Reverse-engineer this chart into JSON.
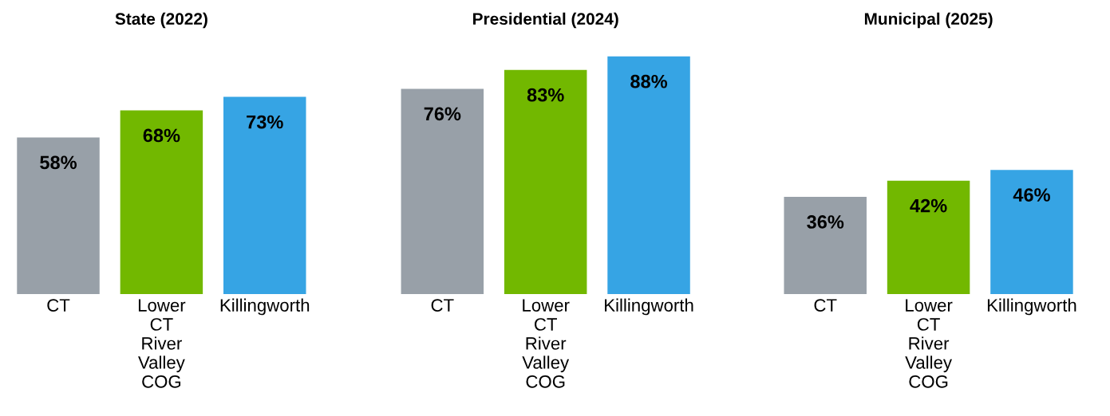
{
  "chart_data": [
    {
      "type": "bar",
      "title": "State (2022)",
      "categories": [
        "CT",
        "Lower CT River Valley COG",
        "Killingworth"
      ],
      "values": [
        58,
        68,
        73
      ],
      "colors": [
        "#98a0a8",
        "#72b800",
        "#36a4e4"
      ],
      "value_labels": [
        "58%",
        "68%",
        "73%"
      ],
      "tick_labels": "x"
    },
    {
      "type": "bar",
      "title": "Presidential (2024)",
      "categories": [
        "CT",
        "Lower CT River Valley COG",
        "Killingworth"
      ],
      "values": [
        76,
        83,
        88
      ],
      "colors": [
        "#98a0a8",
        "#72b800",
        "#36a4e4"
      ],
      "value_labels": [
        "76%",
        "83%",
        "88%"
      ],
      "tick_labels": "x"
    },
    {
      "type": "bar",
      "title": "Municipal (2025)",
      "categories": [
        "CT",
        "Lower CT River Valley COG",
        "Killingworth"
      ],
      "values": [
        36,
        42,
        46
      ],
      "colors": [
        "#98a0a8",
        "#72b800",
        "#36a4e4"
      ],
      "value_labels": [
        "36%",
        "42%",
        "46%"
      ],
      "tick_labels": "x"
    }
  ]
}
